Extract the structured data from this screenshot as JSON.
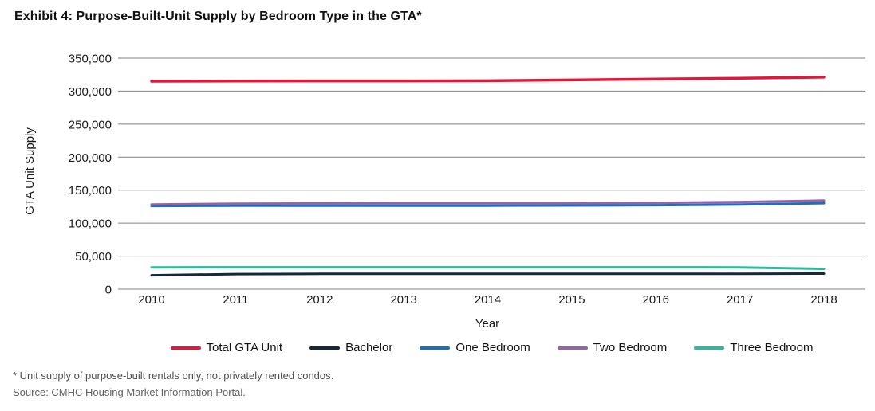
{
  "page": {
    "title": "Exhibit 4: Purpose-Built-Unit Supply by Bedroom Type in the GTA*",
    "footnote1": "* Unit supply of purpose-built rentals only, not privately rented condos.",
    "footnote2": "Source: CMHC Housing Market Information Portal."
  },
  "colors": {
    "total_gta_unit": "#E4173B",
    "bachelor": "#17263F",
    "one_bedroom": "#1C6FBE",
    "two_bedroom": "#9463A8",
    "three_bedroom": "#2CBA9B",
    "gridline": "#808080",
    "axis_text": "#1A1A1A",
    "footnote_text": "#4D4D4D"
  },
  "chart_data": {
    "type": "line",
    "title": "Exhibit 4: Purpose-Built-Unit Supply by Bedroom Type in the GTA*",
    "xlabel": "Year",
    "ylabel": "GTA Unit Supply",
    "x": [
      2010,
      2011,
      2012,
      2013,
      2014,
      2015,
      2016,
      2017,
      2018
    ],
    "ylim": [
      0,
      350000
    ],
    "yticks": [
      0,
      50000,
      100000,
      150000,
      200000,
      250000,
      300000,
      350000
    ],
    "grid": true,
    "legend_position": "bottom",
    "series": [
      {
        "name": "Total GTA Unit",
        "color": "#E4173B",
        "values": [
          315000,
          315400,
          315500,
          315500,
          315700,
          316900,
          318300,
          319600,
          321200
        ]
      },
      {
        "name": "Bachelor",
        "color": "#17263F",
        "values": [
          21000,
          22800,
          23200,
          23300,
          23300,
          23300,
          23300,
          23300,
          23500
        ]
      },
      {
        "name": "One Bedroom",
        "color": "#1C6FBE",
        "values": [
          126000,
          126400,
          126500,
          126500,
          126500,
          126700,
          127200,
          128200,
          130200
        ]
      },
      {
        "name": "Two Bedroom",
        "color": "#9463A8",
        "values": [
          128300,
          129400,
          129800,
          130000,
          130000,
          130100,
          130700,
          132000,
          134200
        ]
      },
      {
        "name": "Three Bedroom",
        "color": "#2CBA9B",
        "values": [
          33000,
          33100,
          33100,
          33100,
          33100,
          33100,
          33100,
          33000,
          30600
        ]
      }
    ]
  }
}
